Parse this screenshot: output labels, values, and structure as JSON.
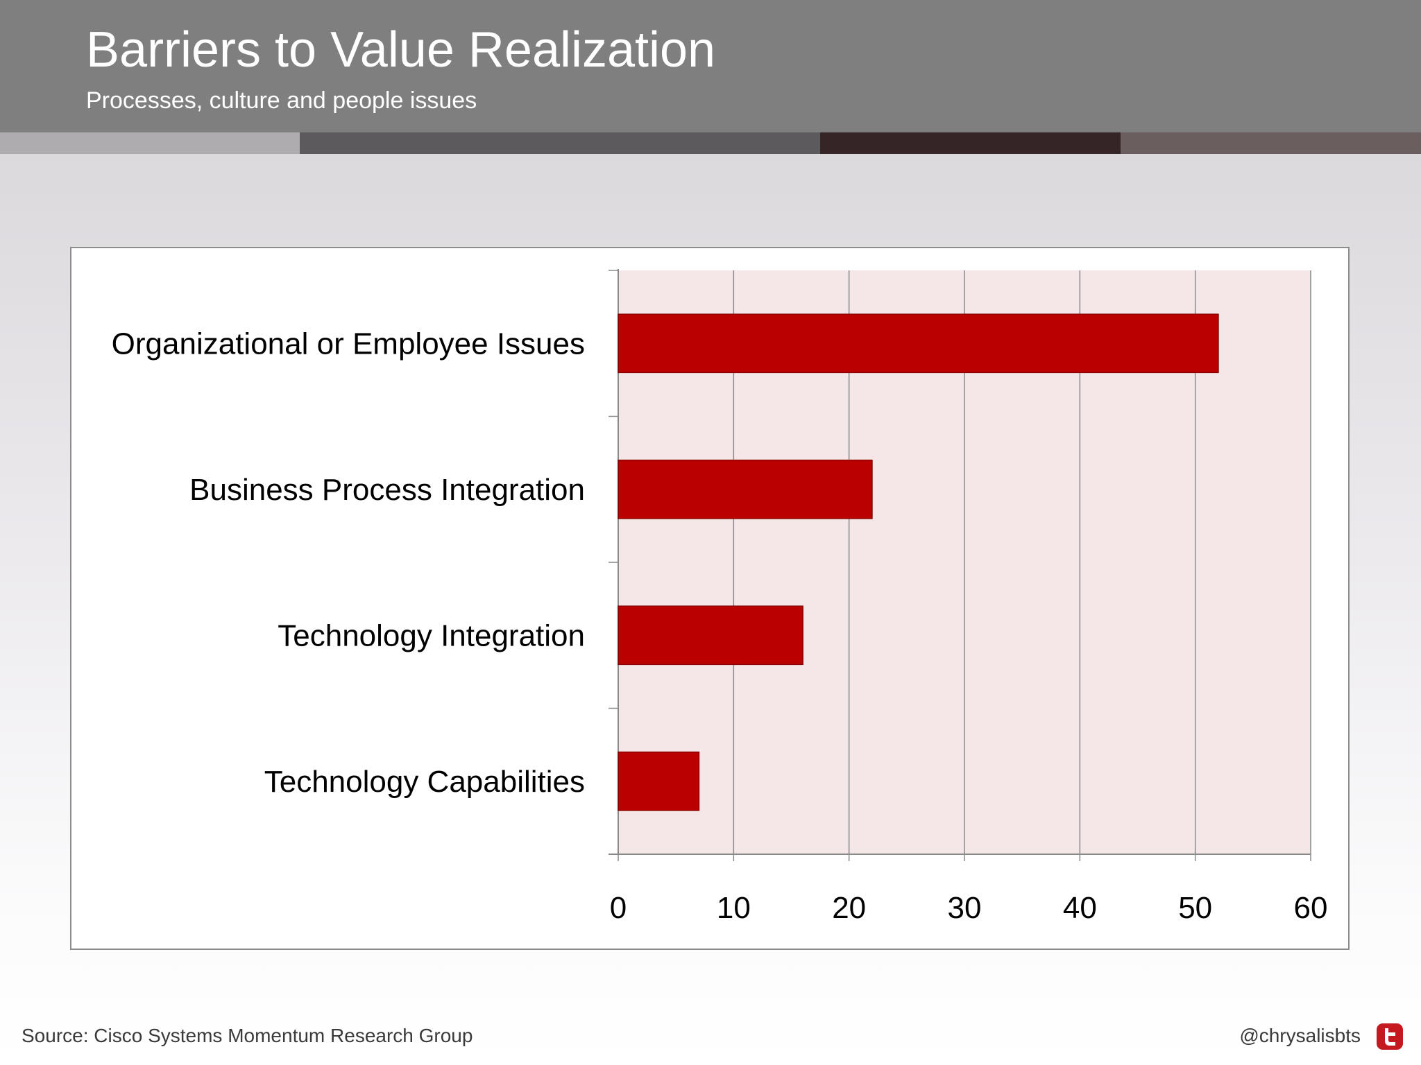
{
  "header": {
    "title": "Barriers to Value Realization",
    "subtitle": "Processes, culture and people issues"
  },
  "colors": {
    "header_bg": "#7f7f7f",
    "stripes": [
      "#aeacaf",
      "#5d5a5e",
      "#352527",
      "#6b5e5f"
    ],
    "bar_fill": "#bb0000",
    "plot_bg": "#f5e6e8",
    "icon_red": "#c41a1f"
  },
  "chart_data": {
    "type": "bar",
    "orientation": "horizontal",
    "categories": [
      "Organizational or Employee Issues",
      "Business Process Integration",
      "Technology Integration",
      "Technology Capabilities"
    ],
    "values": [
      52,
      22,
      16,
      7
    ],
    "xlim": [
      0,
      60
    ],
    "xticks": [
      "0",
      "10",
      "20",
      "30",
      "40",
      "50",
      "60"
    ],
    "grid": true,
    "legend": "none"
  },
  "footer": {
    "source": "Source: Cisco Systems Momentum Research Group",
    "handle": "@chrysalisbts",
    "icon": "twitter-icon"
  }
}
